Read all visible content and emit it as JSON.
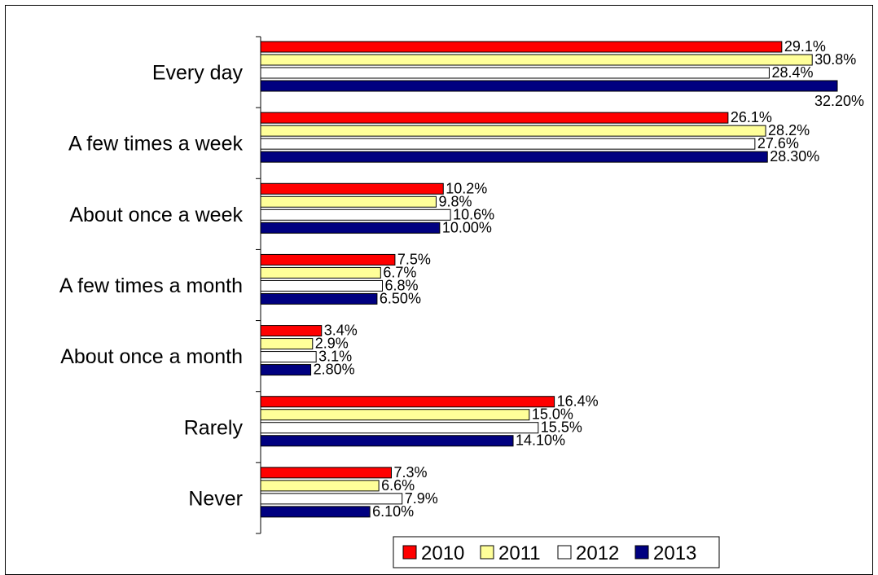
{
  "chart_data": {
    "type": "bar",
    "orientation": "horizontal",
    "categories": [
      "Every day",
      "A few times a week",
      "About once a week",
      "A few times a month",
      "About once a month",
      "Rarely",
      "Never"
    ],
    "series": [
      {
        "name": "2010",
        "color": "#ff0000",
        "values": [
          29.1,
          26.1,
          10.2,
          7.5,
          3.4,
          16.4,
          7.3
        ],
        "labels": [
          "29.1%",
          "26.1%",
          "10.2%",
          "7.5%",
          "3.4%",
          "16.4%",
          "7.3%"
        ]
      },
      {
        "name": "2011",
        "color": "#ffff99",
        "values": [
          30.8,
          28.2,
          9.8,
          6.7,
          2.9,
          15.0,
          6.6
        ],
        "labels": [
          "30.8%",
          "28.2%",
          "9.8%",
          "6.7%",
          "2.9%",
          "15.0%",
          "6.6%"
        ]
      },
      {
        "name": "2012",
        "color": "#ffffff",
        "values": [
          28.4,
          27.6,
          10.6,
          6.8,
          3.1,
          15.5,
          7.9
        ],
        "labels": [
          "28.4%",
          "27.6%",
          "10.6%",
          "6.8%",
          "3.1%",
          "15.5%",
          "7.9%"
        ]
      },
      {
        "name": "2013",
        "color": "#000080",
        "values": [
          32.2,
          28.3,
          10.0,
          6.5,
          2.8,
          14.1,
          6.1
        ],
        "labels": [
          "32.20%",
          "28.30%",
          "10.00%",
          "6.50%",
          "2.80%",
          "14.10%",
          "6.10%"
        ]
      }
    ],
    "title": "",
    "xlabel": "",
    "ylabel": "",
    "xlim": [
      0,
      32.2
    ],
    "grid": false,
    "legend": "bottom"
  }
}
